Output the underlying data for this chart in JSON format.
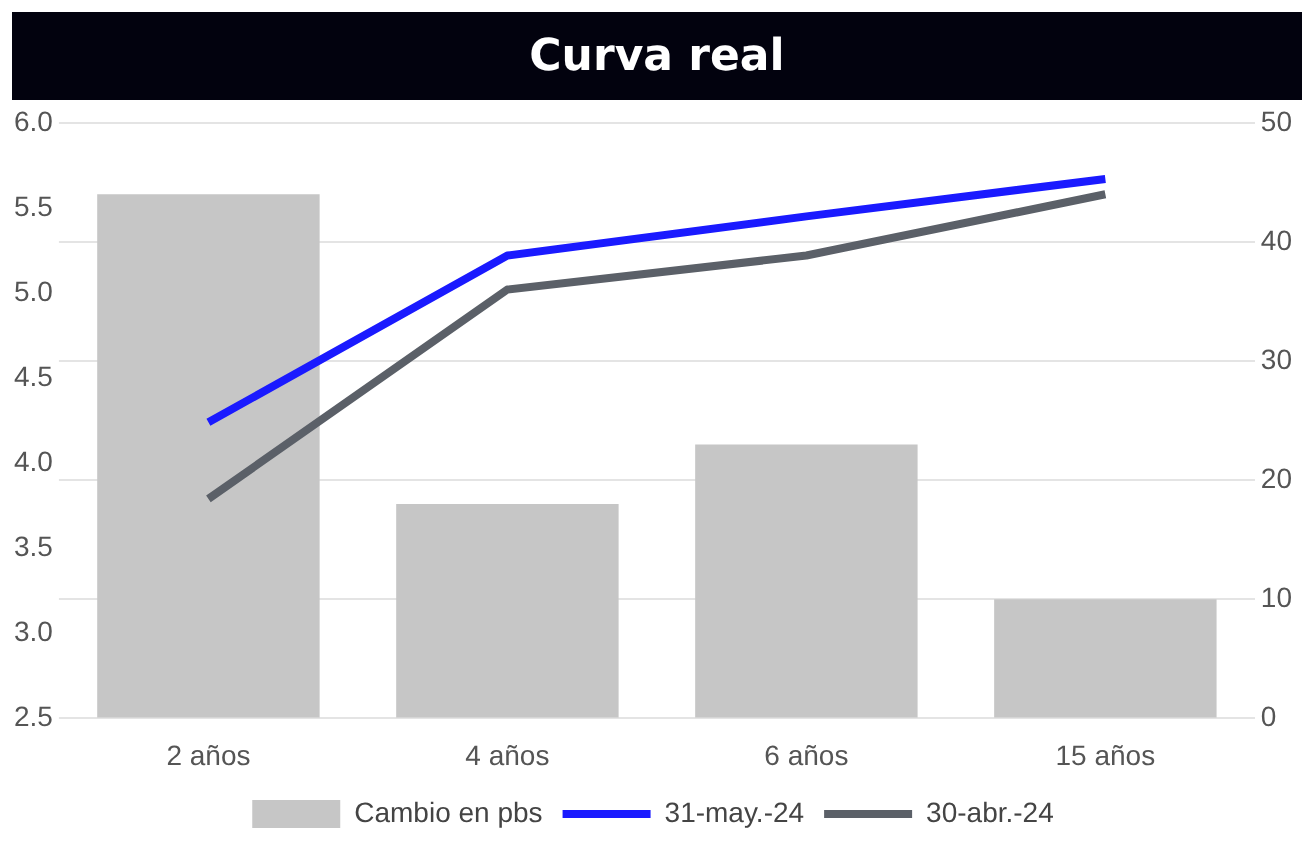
{
  "chart_data": {
    "type": "bar",
    "title": "Curva real",
    "categories": [
      "2 años",
      "4 años",
      "6 años",
      "15 años"
    ],
    "series": [
      {
        "name": "Cambio en pbs",
        "axis": "y2",
        "color": "#c6c6c6",
        "values": [
          44,
          18,
          23,
          10
        ]
      },
      {
        "name": "31-may.-24",
        "type": "line",
        "color": "#1a1aff",
        "values": [
          4.24,
          5.22,
          5.45,
          5.67
        ]
      },
      {
        "name": "30-abr.-24",
        "type": "line",
        "color": "#5b6068",
        "values": [
          3.79,
          5.02,
          5.22,
          5.58
        ]
      }
    ],
    "ylim": [
      2.5,
      6.0
    ],
    "yticks": [
      {
        "value": 2.5,
        "label": "2.5"
      },
      {
        "value": 3,
        "label": "3.0"
      },
      {
        "value": 3.5,
        "label": "3.5"
      },
      {
        "value": 4,
        "label": "4.0"
      },
      {
        "value": 4.5,
        "label": "4.5"
      },
      {
        "value": 5,
        "label": "5.0"
      },
      {
        "value": 5.5,
        "label": "5.5"
      },
      {
        "value": 6,
        "label": "6.0"
      }
    ],
    "y2lim": [
      0,
      50
    ],
    "y2ticks": [
      0,
      10,
      20,
      30,
      40,
      50
    ],
    "grid": "y2",
    "legend": "bottom",
    "marker": "none",
    "line_style": "solid"
  }
}
